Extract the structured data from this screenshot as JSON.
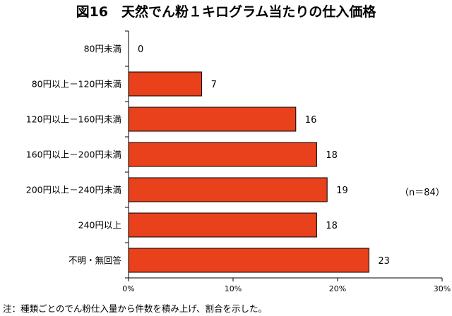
{
  "chart_data": {
    "type": "bar",
    "orientation": "horizontal",
    "title": "図16　天然でん粉１キログラム当たりの仕入価格",
    "categories": [
      "80円未満",
      "80円以上－120円未満",
      "120円以上－160円未満",
      "160円以上－200円未満",
      "200円以上－240円未満",
      "240円以上",
      "不明・無回答"
    ],
    "values": [
      0,
      7,
      16,
      18,
      19,
      18,
      23
    ],
    "value_labels": [
      "0",
      "7",
      "16",
      "18",
      "19",
      "18",
      "23"
    ],
    "xlim": [
      0,
      30
    ],
    "xticks": [
      0,
      10,
      20,
      30
    ],
    "xtick_labels": [
      "0%",
      "10%",
      "20%",
      "30%"
    ],
    "xlabel": "",
    "ylabel": "",
    "grid": false,
    "sample_size": "（n＝84）",
    "bar_color": "#e8411c",
    "bar_edge_color": "#000000"
  },
  "footnote": "注：種類ごとのでん粉仕入量から件数を積み上げ、割合を示した。"
}
